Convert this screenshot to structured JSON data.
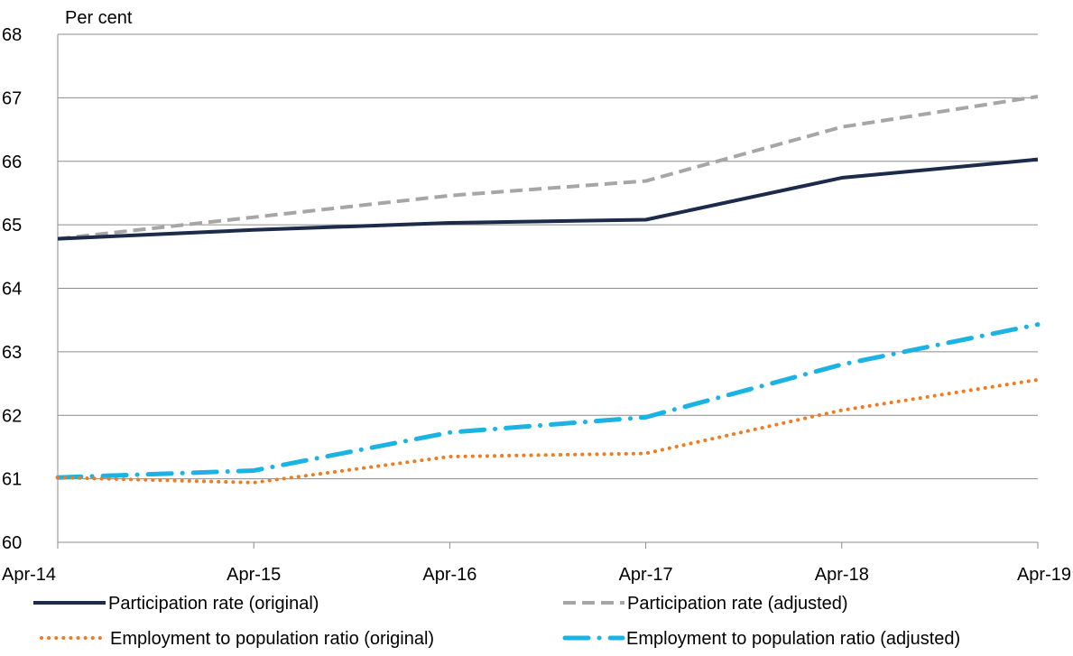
{
  "chart_data": {
    "type": "line",
    "ylabel": "Per cent",
    "xlabel": "",
    "x": [
      "Apr-14",
      "Apr-15",
      "Apr-16",
      "Apr-17",
      "Apr-18",
      "Apr-19"
    ],
    "ylim": [
      60,
      68
    ],
    "yticks": [
      60,
      61,
      62,
      63,
      64,
      65,
      66,
      67,
      68
    ],
    "grid": true,
    "legend_position": "bottom",
    "series": [
      {
        "name": "Participation rate (original)",
        "color": "#1c2b4a",
        "style": "solid",
        "values": [
          64.78,
          64.92,
          65.03,
          65.08,
          65.74,
          66.03
        ]
      },
      {
        "name": "Participation rate (adjusted)",
        "color": "#a6a6a6",
        "style": "dashed",
        "values": [
          64.78,
          65.12,
          65.46,
          65.69,
          66.54,
          67.02
        ]
      },
      {
        "name": "Employment to population ratio (original)",
        "color": "#f07c1f",
        "style": "dotted",
        "values": [
          61.02,
          60.94,
          61.35,
          61.4,
          62.08,
          62.56
        ]
      },
      {
        "name": "Employment to population ratio (adjusted)",
        "color": "#1bb3e3",
        "style": "dash-dot",
        "values": [
          61.02,
          61.13,
          61.73,
          61.97,
          62.8,
          63.43
        ]
      }
    ]
  }
}
